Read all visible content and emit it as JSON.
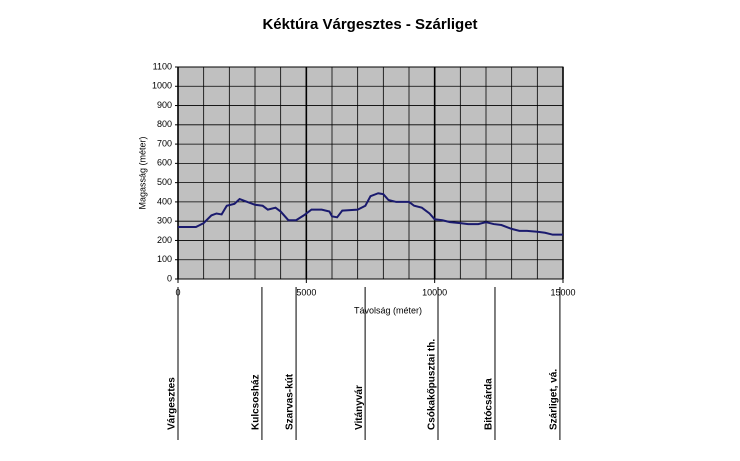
{
  "chart_data": {
    "type": "line",
    "title": "Kéktúra Várgesztes - Szárliget",
    "x_label": "Távolság (méter)",
    "y_label": "Magasság (méter)",
    "x": [
      0,
      700,
      1000,
      1300,
      1500,
      1700,
      1900,
      2200,
      2400,
      2700,
      3000,
      3300,
      3500,
      3800,
      4000,
      4300,
      4600,
      4900,
      5200,
      5600,
      5900,
      6000,
      6200,
      6400,
      7000,
      7300,
      7500,
      7800,
      8000,
      8200,
      8500,
      9000,
      9200,
      9500,
      9800,
      10000,
      10300,
      10600,
      11000,
      11300,
      11700,
      12000,
      12300,
      12600,
      13000,
      13300,
      13600,
      14000,
      14300,
      14600,
      15000
    ],
    "series": [
      {
        "name": "Magasság",
        "color": "#1a1a6e",
        "values": [
          270,
          270,
          290,
          330,
          340,
          335,
          380,
          390,
          415,
          400,
          385,
          380,
          360,
          370,
          350,
          305,
          305,
          330,
          360,
          360,
          350,
          325,
          320,
          355,
          360,
          380,
          430,
          445,
          440,
          410,
          400,
          400,
          380,
          370,
          340,
          310,
          305,
          295,
          290,
          285,
          285,
          295,
          285,
          280,
          260,
          250,
          250,
          245,
          240,
          230,
          230
        ]
      }
    ],
    "xlim": [
      0,
      15000
    ],
    "xticks": [
      0,
      5000,
      10000,
      15000
    ],
    "x_minor_step": 1000,
    "ylim": [
      0,
      1100
    ],
    "yticks": [
      0,
      100,
      200,
      300,
      400,
      500,
      600,
      700,
      800,
      900,
      1000,
      1100
    ],
    "grid": true,
    "background": "#c0c0c0",
    "waypoints": [
      {
        "label": "Várgesztes",
        "x": 0
      },
      {
        "label": "Kulcsosház",
        "x": 3270
      },
      {
        "label": "Szarvas-kút",
        "x": 4600
      },
      {
        "label": "Vitányvár",
        "x": 7290
      },
      {
        "label": "Csókakőpusztai th.",
        "x": 10130
      },
      {
        "label": "Bitócsárda",
        "x": 12350
      },
      {
        "label": "Szárliget, vá.",
        "x": 14880
      }
    ]
  }
}
